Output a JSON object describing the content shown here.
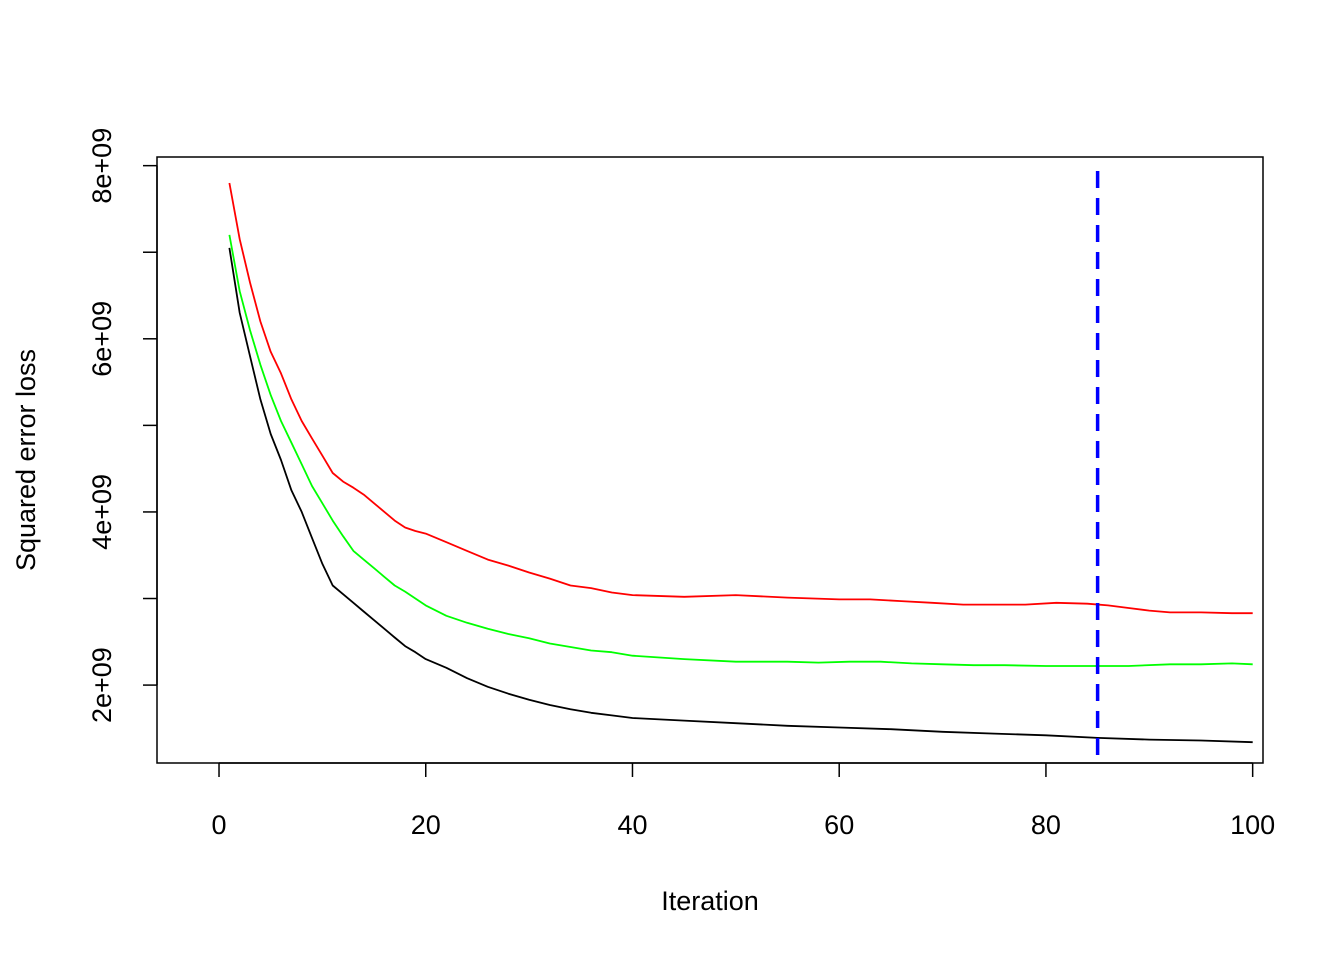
{
  "chart_data": {
    "type": "line",
    "title": "",
    "xlabel": "Iteration",
    "ylabel": "Squared error loss",
    "xlim": [
      -6,
      101
    ],
    "ylim": [
      1100000000,
      8100000000
    ],
    "x_ticks": [
      0,
      20,
      40,
      60,
      80,
      100
    ],
    "x_tick_labels": [
      "0",
      "20",
      "40",
      "60",
      "80",
      "100"
    ],
    "y_ticks": [
      2000000000,
      3000000000,
      4000000000,
      5000000000,
      6000000000,
      7000000000,
      8000000000
    ],
    "y_tick_labels": [
      "2e+09",
      "",
      "4e+09",
      "",
      "6e+09",
      "",
      "8e+09"
    ],
    "grid": false,
    "legend": "none",
    "series": [
      {
        "color": "#ff0000",
        "x": [
          1,
          2,
          3,
          4,
          5,
          6,
          7,
          8,
          9,
          10,
          11,
          12,
          13,
          14,
          15,
          16,
          17,
          18,
          19,
          20,
          22,
          24,
          26,
          28,
          30,
          32,
          34,
          36,
          38,
          40,
          45,
          50,
          55,
          60,
          63,
          66,
          69,
          72,
          75,
          78,
          81,
          84,
          86,
          88,
          90,
          92,
          95,
          98,
          100
        ],
        "values": [
          7800000000,
          7150000000,
          6650000000,
          6200000000,
          5850000000,
          5600000000,
          5300000000,
          5050000000,
          4850000000,
          4650000000,
          4450000000,
          4350000000,
          4280000000,
          4200000000,
          4100000000,
          4000000000,
          3900000000,
          3820000000,
          3780000000,
          3750000000,
          3650000000,
          3550000000,
          3450000000,
          3380000000,
          3300000000,
          3230000000,
          3150000000,
          3120000000,
          3070000000,
          3040000000,
          3020000000,
          3040000000,
          3010000000,
          2990000000,
          2990000000,
          2970000000,
          2950000000,
          2930000000,
          2930000000,
          2930000000,
          2950000000,
          2940000000,
          2920000000,
          2890000000,
          2860000000,
          2840000000,
          2840000000,
          2830000000,
          2830000000
        ]
      },
      {
        "color": "#00ff00",
        "x": [
          1,
          2,
          3,
          4,
          5,
          6,
          7,
          8,
          9,
          10,
          11,
          12,
          13,
          14,
          15,
          16,
          17,
          18,
          19,
          20,
          22,
          24,
          26,
          28,
          30,
          32,
          34,
          36,
          38,
          40,
          45,
          50,
          55,
          58,
          61,
          64,
          67,
          70,
          73,
          76,
          80,
          84,
          88,
          92,
          95,
          98,
          100
        ],
        "values": [
          7200000000,
          6550000000,
          6100000000,
          5700000000,
          5350000000,
          5050000000,
          4800000000,
          4550000000,
          4300000000,
          4100000000,
          3900000000,
          3720000000,
          3550000000,
          3450000000,
          3350000000,
          3250000000,
          3150000000,
          3080000000,
          3000000000,
          2920000000,
          2800000000,
          2720000000,
          2650000000,
          2590000000,
          2540000000,
          2480000000,
          2440000000,
          2400000000,
          2380000000,
          2340000000,
          2300000000,
          2270000000,
          2270000000,
          2260000000,
          2270000000,
          2270000000,
          2250000000,
          2240000000,
          2230000000,
          2230000000,
          2220000000,
          2220000000,
          2220000000,
          2240000000,
          2240000000,
          2250000000,
          2240000000
        ]
      },
      {
        "color": "#000000",
        "x": [
          1,
          2,
          3,
          4,
          5,
          6,
          7,
          8,
          9,
          10,
          11,
          12,
          13,
          14,
          15,
          16,
          17,
          18,
          19,
          20,
          22,
          24,
          26,
          28,
          30,
          32,
          34,
          36,
          38,
          40,
          45,
          50,
          55,
          60,
          65,
          70,
          75,
          80,
          85,
          90,
          95,
          100
        ],
        "values": [
          7050000000,
          6300000000,
          5800000000,
          5300000000,
          4900000000,
          4600000000,
          4250000000,
          4000000000,
          3700000000,
          3400000000,
          3150000000,
          3050000000,
          2950000000,
          2850000000,
          2750000000,
          2650000000,
          2550000000,
          2450000000,
          2380000000,
          2300000000,
          2200000000,
          2080000000,
          1980000000,
          1900000000,
          1830000000,
          1770000000,
          1720000000,
          1680000000,
          1650000000,
          1620000000,
          1590000000,
          1560000000,
          1530000000,
          1510000000,
          1490000000,
          1460000000,
          1440000000,
          1420000000,
          1390000000,
          1370000000,
          1360000000,
          1340000000
        ]
      }
    ],
    "vlines": [
      {
        "x": 85,
        "color": "#0000ff",
        "style": "dashed"
      }
    ]
  }
}
